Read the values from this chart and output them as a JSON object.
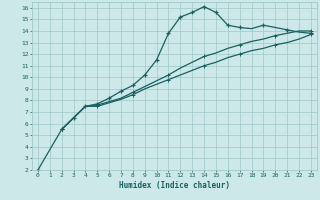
{
  "background_color": "#cce8e8",
  "grid_color": "#a0c8c8",
  "line_color": "#1a6060",
  "xlabel": "Humidex (Indice chaleur)",
  "xlim": [
    -0.5,
    23.5
  ],
  "ylim": [
    2,
    16.5
  ],
  "xticks": [
    0,
    1,
    2,
    3,
    4,
    5,
    6,
    7,
    8,
    9,
    10,
    11,
    12,
    13,
    14,
    15,
    16,
    17,
    18,
    19,
    20,
    21,
    22,
    23
  ],
  "yticks": [
    2,
    3,
    4,
    5,
    6,
    7,
    8,
    9,
    10,
    11,
    12,
    13,
    14,
    15,
    16
  ],
  "line_peaked_x": [
    0,
    2,
    3,
    4,
    5,
    6,
    7,
    8,
    9,
    10,
    11,
    12,
    13,
    14,
    15,
    16,
    17,
    18,
    19,
    20,
    21,
    22,
    23
  ],
  "line_peaked_y": [
    2,
    5.5,
    6.5,
    7.5,
    7.7,
    8.2,
    8.8,
    9.3,
    10.2,
    11.5,
    13.8,
    15.2,
    15.6,
    16.1,
    15.6,
    14.5,
    14.3,
    14.2,
    14.5,
    14.3,
    14.1,
    13.9,
    13.8
  ],
  "peaked_marker_x": [
    0,
    2,
    3,
    4,
    5,
    6,
    7,
    8,
    9,
    10,
    11,
    12,
    13,
    14,
    15,
    16,
    17,
    19,
    21,
    23
  ],
  "peaked_marker_y": [
    2,
    5.5,
    6.5,
    7.5,
    7.7,
    8.2,
    8.8,
    9.3,
    10.2,
    11.5,
    13.8,
    15.2,
    15.6,
    16.1,
    15.6,
    14.5,
    14.3,
    14.5,
    14.1,
    13.8
  ],
  "line_flat1_x": [
    2,
    3,
    4,
    5,
    6,
    7,
    8,
    9,
    10,
    11,
    12,
    13,
    14,
    15,
    16,
    17,
    18,
    19,
    20,
    21,
    22,
    23
  ],
  "line_flat1_y": [
    5.5,
    6.5,
    7.5,
    7.5,
    7.8,
    8.1,
    8.5,
    9.0,
    9.4,
    9.8,
    10.2,
    10.6,
    11.0,
    11.3,
    11.7,
    12.0,
    12.3,
    12.5,
    12.8,
    13.0,
    13.3,
    13.7
  ],
  "line_flat2_x": [
    2,
    3,
    4,
    5,
    6,
    7,
    8,
    9,
    10,
    11,
    12,
    13,
    14,
    15,
    16,
    17,
    18,
    19,
    20,
    21,
    22,
    23
  ],
  "line_flat2_y": [
    5.5,
    6.5,
    7.5,
    7.6,
    7.9,
    8.2,
    8.7,
    9.2,
    9.7,
    10.2,
    10.8,
    11.3,
    11.8,
    12.1,
    12.5,
    12.8,
    13.1,
    13.3,
    13.6,
    13.8,
    14.0,
    14.0
  ]
}
